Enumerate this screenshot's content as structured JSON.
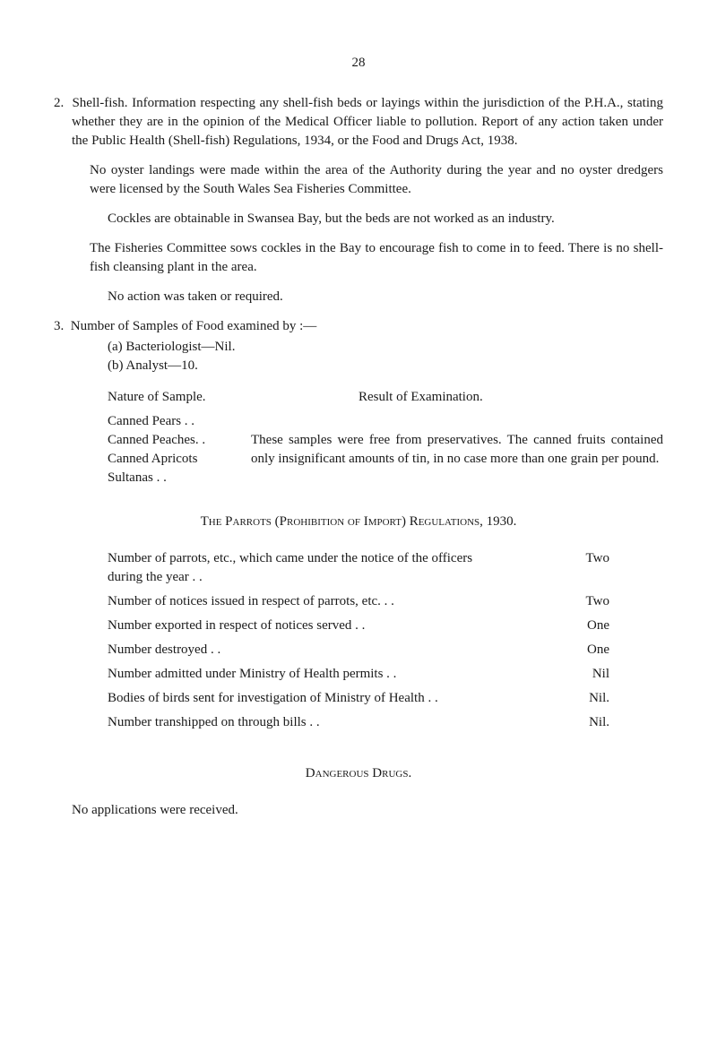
{
  "page_number": "28",
  "item2": {
    "num": "2.",
    "title_inline": "Shell-fish.",
    "text": " Information respecting any shell-fish beds or layings within the jurisdiction of the P.H.A., stating whether they are in the opinion of the Medical Officer liable to pollution. Report of any action taken under the Public Health (Shell-fish) Regulations, 1934, or the Food and Drugs Act, 1938."
  },
  "para1": "No oyster landings were made within the area of the Authority during the year and no oyster dredgers were licensed by the South Wales Sea Fisheries Committee.",
  "para1b": "Cockles are obtainable in Swansea Bay, but the beds are not worked as an industry.",
  "para2": "The Fisheries Committee sows cockles in the Bay to encourage fish to come in to feed. There is no shell-fish cleansing plant in the area.",
  "para3": "No action was taken or required.",
  "item3": {
    "num": "3.",
    "text": "Number of Samples of Food examined by :—",
    "a": "(a)  Bacteriologist—Nil.",
    "b": "(b)  Analyst—10."
  },
  "sample_headers": {
    "left": "Nature of Sample.",
    "right": "Result of Examination."
  },
  "samples": {
    "left": [
      "Canned Pears   . .",
      "Canned Peaches. .",
      "Canned Apricots",
      "Sultanas . ."
    ],
    "right": "These samples were free from preservatives. The canned fruits contained only insignificant amounts of tin, in no case more than one grain per pound."
  },
  "parrots_title": "The Parrots (Prohibition of Import) Regulations, 1930.",
  "parrots_rows": [
    {
      "label": "Number of parrots, etc., which came under the notice of the officers during the year",
      "value": "Two"
    },
    {
      "label": "Number of notices issued in respect of parrots, etc.",
      "value": "Two"
    },
    {
      "label": "Number exported in respect of notices served",
      "value": "One"
    },
    {
      "label": "Number destroyed",
      "value": "One"
    },
    {
      "label": "Number admitted under Ministry of Health permits",
      "value": "Nil"
    },
    {
      "label": "Bodies of birds sent for investigation of Ministry of Health",
      "value": "Nil."
    },
    {
      "label": "Number transhipped on through bills",
      "value": "Nil."
    }
  ],
  "drugs_title": "Dangerous Drugs.",
  "drugs_text": "No applications were received."
}
